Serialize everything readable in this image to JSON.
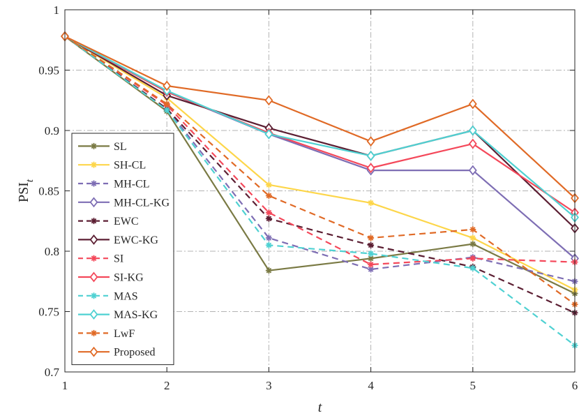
{
  "chart_data": {
    "type": "line",
    "title": "",
    "xlabel": "t",
    "ylabel": "PSI",
    "ylabel_subscript": "t",
    "x": [
      1,
      2,
      3,
      4,
      5,
      6
    ],
    "xlim": [
      1,
      6
    ],
    "ylim": [
      0.7,
      1.0
    ],
    "xticks": [
      "1",
      "2",
      "3",
      "4",
      "5",
      "6"
    ],
    "yticks": [
      "0.7",
      "0.75",
      "0.8",
      "0.85",
      "0.9",
      "0.95",
      "1"
    ],
    "grid": true,
    "legend_position": "bottom-left",
    "series": [
      {
        "name": "SL",
        "color": "#7a7a44",
        "dash": "solid",
        "marker": "asterisk",
        "values": [
          0.978,
          0.916,
          0.784,
          0.794,
          0.806,
          0.765
        ]
      },
      {
        "name": "SH-CL",
        "color": "#fdd64a",
        "dash": "solid",
        "marker": "asterisk",
        "values": [
          0.978,
          0.927,
          0.855,
          0.84,
          0.811,
          0.768
        ]
      },
      {
        "name": "MH-CL",
        "color": "#7e6eb4",
        "dash": "dashed",
        "marker": "asterisk",
        "values": [
          0.978,
          0.918,
          0.811,
          0.785,
          0.795,
          0.775
        ]
      },
      {
        "name": "MH-CL-KG",
        "color": "#7e6eb4",
        "dash": "solid",
        "marker": "diamond",
        "values": [
          0.978,
          0.932,
          0.897,
          0.867,
          0.867,
          0.794
        ]
      },
      {
        "name": "EWC",
        "color": "#5c1f33",
        "dash": "dashed",
        "marker": "asterisk",
        "values": [
          0.978,
          0.918,
          0.827,
          0.805,
          0.787,
          0.749
        ]
      },
      {
        "name": "EWC-KG",
        "color": "#5c1f33",
        "dash": "solid",
        "marker": "diamond",
        "values": [
          0.978,
          0.929,
          0.902,
          0.879,
          0.9,
          0.819
        ]
      },
      {
        "name": "SI",
        "color": "#f4485a",
        "dash": "dashed",
        "marker": "asterisk",
        "values": [
          0.978,
          0.921,
          0.832,
          0.789,
          0.794,
          0.791
        ]
      },
      {
        "name": "SI-KG",
        "color": "#f4485a",
        "dash": "solid",
        "marker": "diamond",
        "values": [
          0.978,
          0.932,
          0.898,
          0.869,
          0.889,
          0.832
        ]
      },
      {
        "name": "MAS",
        "color": "#4fd1d2",
        "dash": "dashed",
        "marker": "asterisk",
        "values": [
          0.978,
          0.917,
          0.805,
          0.798,
          0.786,
          0.722
        ]
      },
      {
        "name": "MAS-KG",
        "color": "#4fd1d2",
        "dash": "solid",
        "marker": "diamond",
        "values": [
          0.978,
          0.933,
          0.897,
          0.879,
          0.9,
          0.828
        ]
      },
      {
        "name": "LwF",
        "color": "#e06a26",
        "dash": "dashed",
        "marker": "asterisk",
        "values": [
          0.978,
          0.922,
          0.846,
          0.811,
          0.818,
          0.756
        ]
      },
      {
        "name": "Proposed",
        "color": "#e06a26",
        "dash": "solid",
        "marker": "diamond",
        "values": [
          0.978,
          0.937,
          0.925,
          0.891,
          0.922,
          0.844
        ]
      }
    ]
  }
}
